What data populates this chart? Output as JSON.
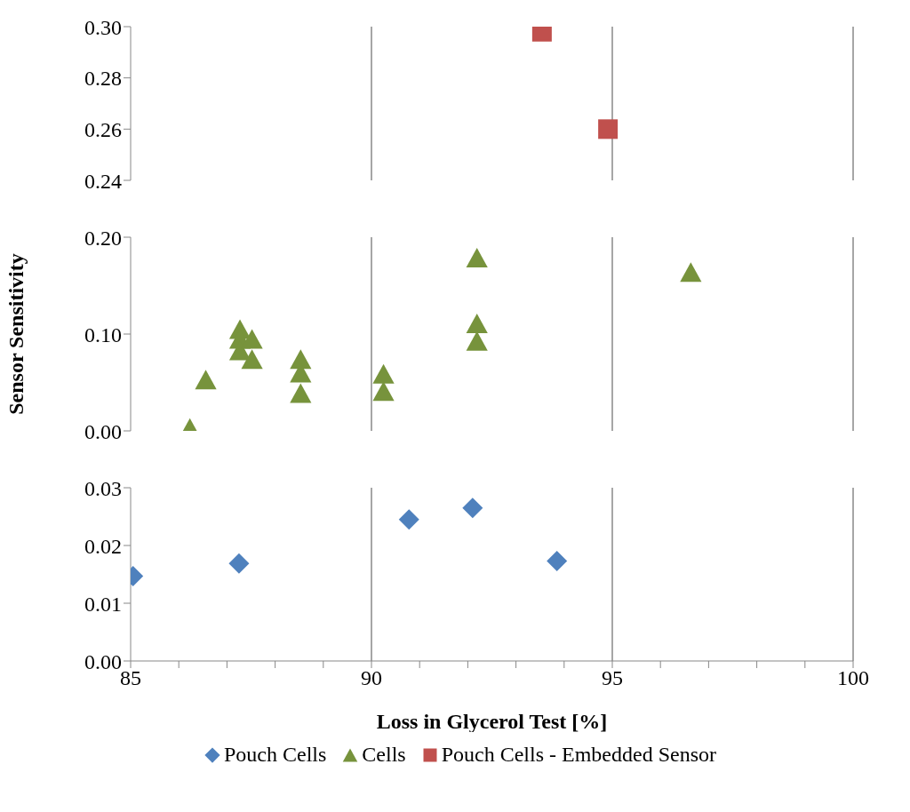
{
  "chart_data": [
    {
      "type": "scatter",
      "xlim": [
        85,
        100
      ],
      "xticks": [
        85,
        90,
        95,
        100
      ],
      "ylim": [
        0.24,
        0.3
      ],
      "yticks": [
        {
          "value": 0.24,
          "label": "0.24"
        },
        {
          "value": 0.26,
          "label": "0.26"
        },
        {
          "value": 0.28,
          "label": "0.28"
        },
        {
          "value": 0.3,
          "label": "0.30"
        }
      ],
      "tick_labels": "y",
      "grid": "x",
      "marker": "square",
      "series": [
        {
          "name": "Pouch Cells - Embedded Sensor",
          "color": "#c0504d",
          "x": [
            93.54,
            94.91
          ],
          "values": [
            0.298,
            0.26
          ]
        }
      ]
    },
    {
      "type": "scatter",
      "ylabel": "Sensor Sensitivity",
      "xlim": [
        85,
        100
      ],
      "xticks": [
        85,
        90,
        95,
        100
      ],
      "ylim": [
        0,
        0.2
      ],
      "yticks": [
        {
          "value": 0,
          "label": "0.00"
        },
        {
          "value": 0.1,
          "label": "0.10"
        },
        {
          "value": 0.2,
          "label": "0.20"
        }
      ],
      "tick_labels": "y",
      "grid": "x",
      "marker": "triangle",
      "series": [
        {
          "name": "Cells",
          "color": "#77933c",
          "x": [
            86.23,
            86.56,
            87.27,
            87.27,
            87.27,
            87.52,
            87.52,
            88.53,
            88.53,
            88.53,
            90.25,
            90.25,
            92.19,
            92.19,
            92.19,
            96.63
          ],
          "values": [
            0.003,
            0.053,
            0.105,
            0.095,
            0.083,
            0.095,
            0.074,
            0.074,
            0.06,
            0.039,
            0.059,
            0.041,
            0.179,
            0.111,
            0.093,
            0.164
          ]
        }
      ]
    },
    {
      "type": "scatter",
      "xlabel": "Loss in Glycerol Test [%]",
      "xlim": [
        85,
        100
      ],
      "xticks": [
        85,
        {
          "value": 86,
          "label": null
        },
        {
          "value": 87,
          "label": null
        },
        {
          "value": 88,
          "label": null
        },
        {
          "value": 89,
          "label": null
        },
        90,
        {
          "value": 91,
          "label": null
        },
        {
          "value": 92,
          "label": null
        },
        {
          "value": 93,
          "label": null
        },
        {
          "value": 94,
          "label": null
        },
        95,
        {
          "value": 96,
          "label": null
        },
        {
          "value": 97,
          "label": null
        },
        {
          "value": 98,
          "label": null
        },
        {
          "value": 99,
          "label": null
        },
        100
      ],
      "ylim": [
        0,
        0.03
      ],
      "yticks": [
        {
          "value": 0,
          "label": "0.00"
        },
        {
          "value": 0.01,
          "label": "0.01"
        },
        {
          "value": 0.02,
          "label": "0.02"
        },
        {
          "value": 0.03,
          "label": "0.03"
        }
      ],
      "grid": "x",
      "marker": "diamond",
      "legend": "bottom",
      "series": [
        {
          "name": "Pouch Cells",
          "color": "#4f81bd",
          "x": [
            85.05,
            87.25,
            90.78,
            92.1,
            93.85
          ],
          "values": [
            0.0147,
            0.0169,
            0.0245,
            0.0265,
            0.0173
          ]
        }
      ]
    }
  ]
}
